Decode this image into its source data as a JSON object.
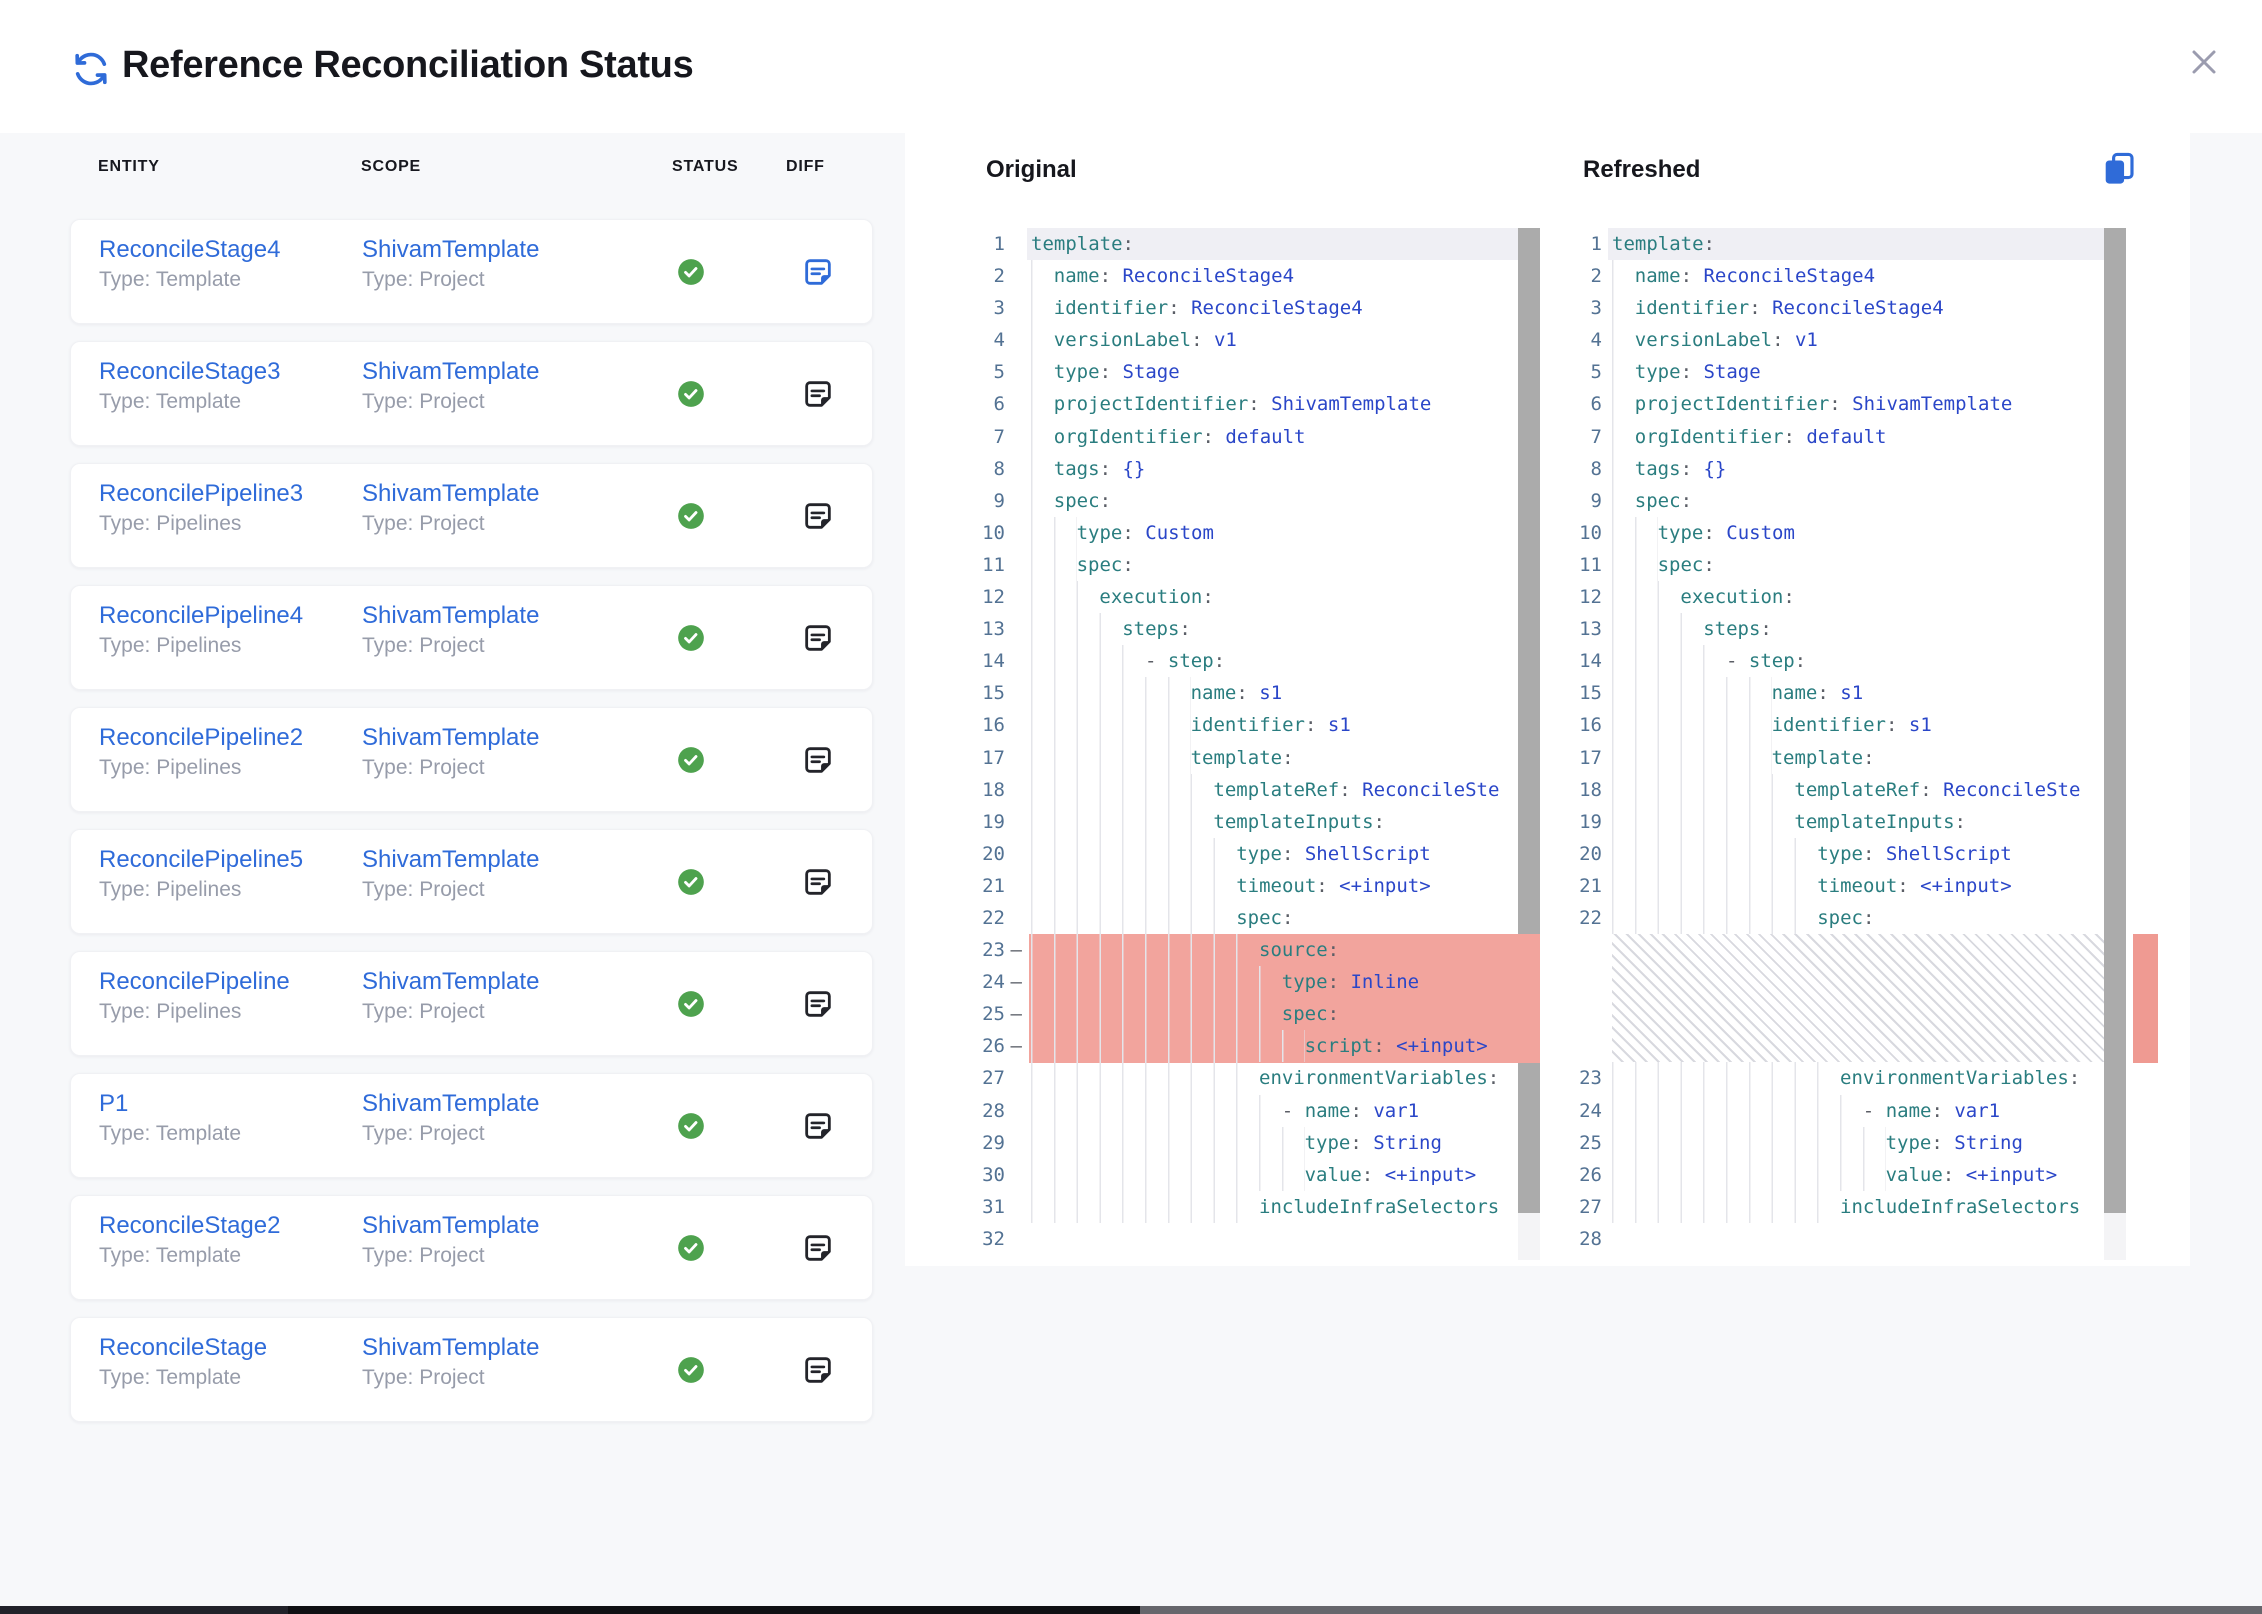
{
  "header": {
    "title": "Reference Reconciliation Status"
  },
  "table": {
    "headers": [
      "ENTITY",
      "SCOPE",
      "STATUS",
      "DIFF"
    ],
    "rows": [
      {
        "entity": "ReconcileStage4",
        "entity_type": "Type: Template",
        "scope": "ShivamTemplate",
        "scope_type": "Type: Project",
        "status": "success",
        "diff_selected": true
      },
      {
        "entity": "ReconcileStage3",
        "entity_type": "Type: Template",
        "scope": "ShivamTemplate",
        "scope_type": "Type: Project",
        "status": "success",
        "diff_selected": false
      },
      {
        "entity": "ReconcilePipeline3",
        "entity_type": "Type: Pipelines",
        "scope": "ShivamTemplate",
        "scope_type": "Type: Project",
        "status": "success",
        "diff_selected": false
      },
      {
        "entity": "ReconcilePipeline4",
        "entity_type": "Type: Pipelines",
        "scope": "ShivamTemplate",
        "scope_type": "Type: Project",
        "status": "success",
        "diff_selected": false
      },
      {
        "entity": "ReconcilePipeline2",
        "entity_type": "Type: Pipelines",
        "scope": "ShivamTemplate",
        "scope_type": "Type: Project",
        "status": "success",
        "diff_selected": false
      },
      {
        "entity": "ReconcilePipeline5",
        "entity_type": "Type: Pipelines",
        "scope": "ShivamTemplate",
        "scope_type": "Type: Project",
        "status": "success",
        "diff_selected": false
      },
      {
        "entity": "ReconcilePipeline",
        "entity_type": "Type: Pipelines",
        "scope": "ShivamTemplate",
        "scope_type": "Type: Project",
        "status": "success",
        "diff_selected": false
      },
      {
        "entity": "P1",
        "entity_type": "Type: Template",
        "scope": "ShivamTemplate",
        "scope_type": "Type: Project",
        "status": "success",
        "diff_selected": false
      },
      {
        "entity": "ReconcileStage2",
        "entity_type": "Type: Template",
        "scope": "ShivamTemplate",
        "scope_type": "Type: Project",
        "status": "success",
        "diff_selected": false
      },
      {
        "entity": "ReconcileStage",
        "entity_type": "Type: Template",
        "scope": "ShivamTemplate",
        "scope_type": "Type: Project",
        "status": "success",
        "diff_selected": false
      }
    ]
  },
  "diff": {
    "original_title": "Original",
    "refreshed_title": "Refreshed",
    "code": {
      "head": [
        {
          "ind": 0,
          "k": "template"
        },
        {
          "ind": 2,
          "k": "name",
          "v": "ReconcileStage4"
        },
        {
          "ind": 2,
          "k": "identifier",
          "v": "ReconcileStage4"
        },
        {
          "ind": 2,
          "k": "versionLabel",
          "v": "v1"
        },
        {
          "ind": 2,
          "k": "type",
          "v": "Stage"
        },
        {
          "ind": 2,
          "k": "projectIdentifier",
          "v": "ShivamTemplate"
        },
        {
          "ind": 2,
          "k": "orgIdentifier",
          "v": "default"
        },
        {
          "ind": 2,
          "k": "tags",
          "v": "{}"
        },
        {
          "ind": 2,
          "k": "spec"
        },
        {
          "ind": 4,
          "k": "type",
          "v": "Custom"
        },
        {
          "ind": 4,
          "k": "spec"
        },
        {
          "ind": 6,
          "k": "execution"
        },
        {
          "ind": 8,
          "k": "steps"
        },
        {
          "ind": 10,
          "dash": true,
          "k": "step"
        },
        {
          "ind": 14,
          "k": "name",
          "v": "s1"
        },
        {
          "ind": 14,
          "k": "identifier",
          "v": "s1"
        },
        {
          "ind": 14,
          "k": "template"
        },
        {
          "ind": 16,
          "k": "templateRef",
          "v": "ReconcileSte"
        },
        {
          "ind": 16,
          "k": "templateInputs"
        },
        {
          "ind": 18,
          "k": "type",
          "v": "ShellScript"
        },
        {
          "ind": 18,
          "k": "timeout",
          "v": "<+input>"
        },
        {
          "ind": 18,
          "k": "spec"
        }
      ],
      "removed": [
        {
          "ind": 20,
          "k": "source"
        },
        {
          "ind": 22,
          "k": "type",
          "v": "Inline"
        },
        {
          "ind": 22,
          "k": "spec"
        },
        {
          "ind": 24,
          "k": "script",
          "v": "<+input>"
        }
      ],
      "tail": [
        {
          "ind": 20,
          "k": "environmentVariables"
        },
        {
          "ind": 22,
          "dash": true,
          "k": "name",
          "v": "var1"
        },
        {
          "ind": 24,
          "k": "type",
          "v": "String"
        },
        {
          "ind": 24,
          "k": "value",
          "v": "<+input>"
        },
        {
          "ind": 20,
          "k": "includeInfraSelectors",
          "nc": true
        }
      ],
      "original_line_count": 32,
      "refreshed_line_count": 28
    }
  },
  "colors": {
    "link": "#2f6bd9",
    "accent": "#2f6bd8",
    "status_green": "#4ea24e",
    "removed_bg": "#f2a49d",
    "key": "#2a7d7f",
    "value": "#2a46c8",
    "line_number": "#537293",
    "guide": "#e4e5ea",
    "hatch": "#d8d9df",
    "icon_dark": "#23242a"
  }
}
